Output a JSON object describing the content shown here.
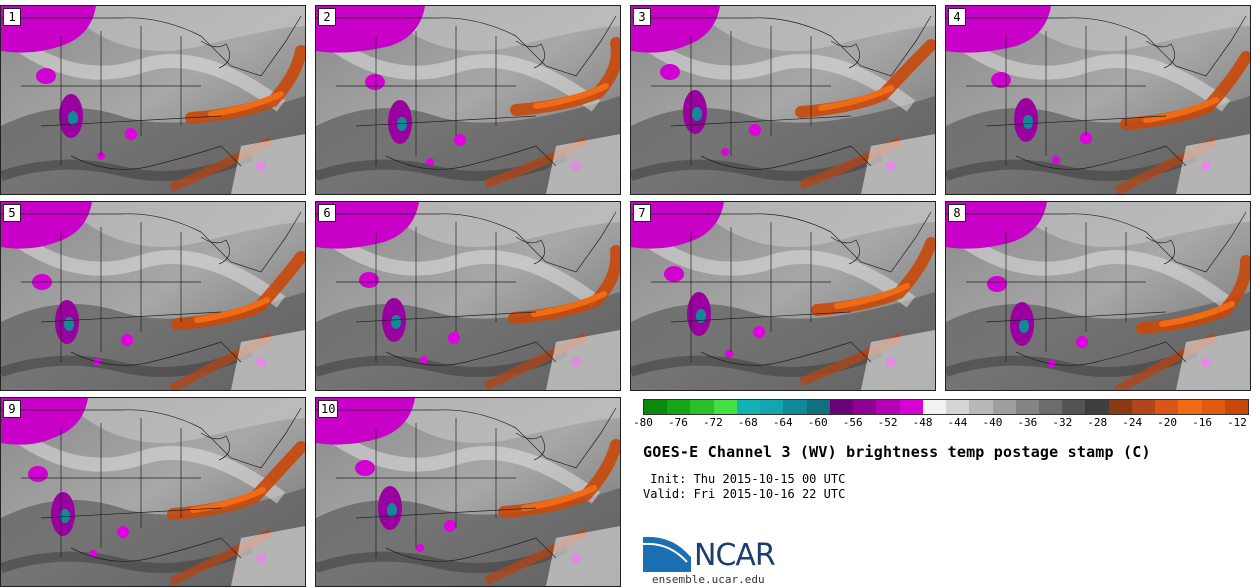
{
  "panels": [
    {
      "label": "1"
    },
    {
      "label": "2"
    },
    {
      "label": "3"
    },
    {
      "label": "4"
    },
    {
      "label": "5"
    },
    {
      "label": "6"
    },
    {
      "label": "7"
    },
    {
      "label": "8"
    },
    {
      "label": "9"
    },
    {
      "label": "10"
    }
  ],
  "colorbar": {
    "ticks": [
      "-80",
      "-76",
      "-72",
      "-68",
      "-64",
      "-60",
      "-56",
      "-52",
      "-48",
      "-44",
      "-40",
      "-36",
      "-32",
      "-28",
      "-24",
      "-20",
      "-16",
      "-12"
    ],
    "colors": [
      "#0a8a0a",
      "#17a417",
      "#2bbf2b",
      "#44e044",
      "#11b3b3",
      "#13a5b0",
      "#118a98",
      "#117080",
      "#6a007a",
      "#900094",
      "#b300b3",
      "#d600d6",
      "#f2f2f2",
      "#d4d4d4",
      "#b8b8b8",
      "#9e9e9e",
      "#848484",
      "#6c6c6c",
      "#545454",
      "#3e3e3e",
      "#8a3a12",
      "#b0461a",
      "#d9561a",
      "#f06b14",
      "#e05a10",
      "#c84808"
    ]
  },
  "title": "GOES-E Channel 3 (WV) brightness temp postage stamp (C)",
  "init": " Init: Thu 2015-10-15 00 UTC",
  "valid": "Valid: Fri 2015-10-16 22 UTC",
  "logo": {
    "text": "NCAR",
    "site": "ensemble.ucar.edu",
    "color": "#1b6fb3"
  }
}
